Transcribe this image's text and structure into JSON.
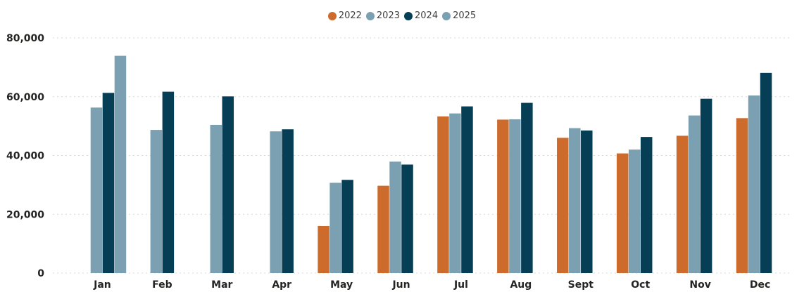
{
  "chart_data": {
    "type": "bar",
    "categories": [
      "Jan",
      "Feb",
      "Mar",
      "Apr",
      "May",
      "Jun",
      "Jul",
      "Aug",
      "Sept",
      "Oct",
      "Nov",
      "Dec"
    ],
    "series": [
      {
        "name": "2022",
        "color": "#cc6b2c",
        "values": [
          null,
          null,
          null,
          null,
          16000,
          29700,
          53300,
          52200,
          46000,
          40700,
          46700,
          52700
        ]
      },
      {
        "name": "2023",
        "color": "#7ba0b1",
        "values": [
          56300,
          48700,
          50400,
          48200,
          30700,
          37900,
          54300,
          52300,
          49300,
          42000,
          53600,
          60400
        ]
      },
      {
        "name": "2024",
        "color": "#063e55",
        "values": [
          61300,
          61700,
          60100,
          48900,
          31700,
          36900,
          56700,
          57900,
          48500,
          46300,
          59300,
          68100
        ]
      },
      {
        "name": "2025",
        "color": "#7ba0b1",
        "values": [
          73900,
          null,
          null,
          null,
          null,
          null,
          null,
          null,
          null,
          null,
          null,
          null
        ]
      }
    ],
    "y_ticks": [
      "0",
      "20,000",
      "40,000",
      "60,000",
      "80,000"
    ],
    "y_tick_values": [
      0,
      20000,
      40000,
      60000,
      80000
    ],
    "ylim": [
      0,
      80000
    ],
    "grid": true,
    "legend": "top-center"
  }
}
